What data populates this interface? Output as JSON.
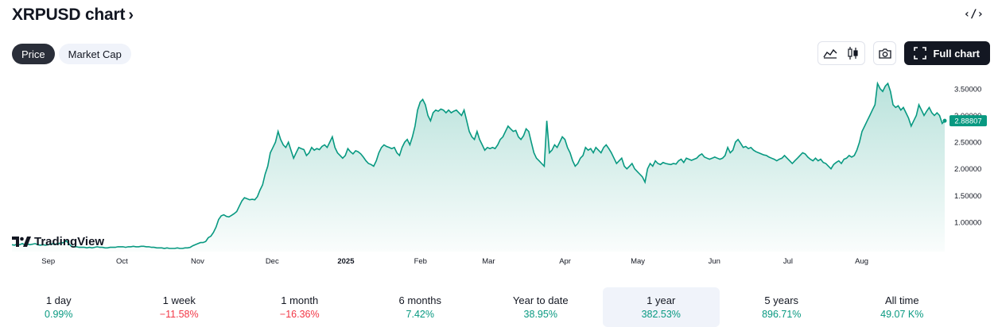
{
  "header": {
    "title": "XRPUSD chart",
    "chevron": "›",
    "embed_icon": "code-icon"
  },
  "toggles": [
    {
      "label": "Price",
      "active": true
    },
    {
      "label": "Market Cap",
      "active": false
    }
  ],
  "toolbar": {
    "line_icon": "area-chart-icon",
    "candle_icon": "candlestick-icon",
    "snapshot_icon": "camera-icon",
    "full_chart_label": "Full chart",
    "full_chart_icon": "fullscreen-icon"
  },
  "logo": {
    "text": "TradingView"
  },
  "colors": {
    "line": "#089981",
    "accent": "#089981",
    "negative": "#f23645"
  },
  "chart_data": {
    "type": "area",
    "series": [
      {
        "values": [
          0.58,
          0.57,
          0.59,
          0.58,
          0.6,
          0.58,
          0.59,
          0.58,
          0.59,
          0.6,
          0.58,
          0.57,
          0.58,
          0.57,
          0.58,
          0.59,
          0.6,
          0.59,
          0.6,
          0.61,
          0.62,
          0.65,
          0.6,
          0.55,
          0.54,
          0.54,
          0.53,
          0.53,
          0.53,
          0.52,
          0.53,
          0.52,
          0.53,
          0.54,
          0.53,
          0.53,
          0.52,
          0.52,
          0.53,
          0.53,
          0.53,
          0.54,
          0.54,
          0.54,
          0.53,
          0.54,
          0.54,
          0.55,
          0.54,
          0.54,
          0.55,
          0.55,
          0.54,
          0.54,
          0.53,
          0.53,
          0.52,
          0.52,
          0.52,
          0.51,
          0.52,
          0.51,
          0.51,
          0.51,
          0.52,
          0.51,
          0.51,
          0.52,
          0.52,
          0.53,
          0.56,
          0.58,
          0.6,
          0.62,
          0.62,
          0.64,
          0.71,
          0.74,
          0.81,
          0.91,
          1.05,
          1.12,
          1.14,
          1.11,
          1.1,
          1.13,
          1.16,
          1.2,
          1.3,
          1.4,
          1.46,
          1.44,
          1.42,
          1.43,
          1.42,
          1.48,
          1.6,
          1.7,
          1.9,
          2.05,
          2.3,
          2.4,
          2.5,
          2.7,
          2.55,
          2.45,
          2.4,
          2.5,
          2.35,
          2.2,
          2.3,
          2.4,
          2.38,
          2.36,
          2.25,
          2.3,
          2.4,
          2.35,
          2.38,
          2.36,
          2.42,
          2.45,
          2.4,
          2.5,
          2.6,
          2.4,
          2.3,
          2.25,
          2.2,
          2.25,
          2.38,
          2.32,
          2.28,
          2.34,
          2.32,
          2.28,
          2.22,
          2.15,
          2.1,
          2.08,
          2.05,
          2.15,
          2.3,
          2.4,
          2.45,
          2.42,
          2.4,
          2.38,
          2.4,
          2.3,
          2.25,
          2.4,
          2.5,
          2.55,
          2.45,
          2.6,
          2.8,
          3.1,
          3.25,
          3.3,
          3.2,
          3.0,
          2.9,
          3.05,
          3.1,
          3.08,
          3.12,
          3.1,
          3.05,
          3.1,
          3.05,
          3.08,
          3.1,
          3.05,
          3.0,
          3.1,
          2.9,
          2.7,
          2.6,
          2.55,
          2.7,
          2.55,
          2.45,
          2.35,
          2.4,
          2.38,
          2.4,
          2.38,
          2.45,
          2.55,
          2.6,
          2.7,
          2.8,
          2.75,
          2.7,
          2.72,
          2.6,
          2.55,
          2.62,
          2.75,
          2.7,
          2.5,
          2.3,
          2.2,
          2.15,
          2.1,
          2.05,
          2.9,
          2.3,
          2.35,
          2.45,
          2.4,
          2.5,
          2.6,
          2.55,
          2.4,
          2.3,
          2.15,
          2.05,
          2.1,
          2.2,
          2.25,
          2.4,
          2.35,
          2.38,
          2.3,
          2.4,
          2.35,
          2.3,
          2.4,
          2.45,
          2.38,
          2.3,
          2.2,
          2.1,
          2.15,
          2.2,
          2.05,
          2.0,
          2.05,
          2.1,
          2.0,
          1.95,
          1.9,
          1.85,
          1.75,
          2.0,
          2.1,
          2.05,
          2.15,
          2.1,
          2.08,
          2.12,
          2.1,
          2.09,
          2.08,
          2.1,
          2.09,
          2.15,
          2.18,
          2.12,
          2.2,
          2.18,
          2.16,
          2.18,
          2.2,
          2.25,
          2.28,
          2.22,
          2.2,
          2.18,
          2.2,
          2.22,
          2.2,
          2.18,
          2.2,
          2.25,
          2.4,
          2.3,
          2.35,
          2.5,
          2.55,
          2.48,
          2.4,
          2.42,
          2.38,
          2.4,
          2.35,
          2.32,
          2.3,
          2.28,
          2.26,
          2.25,
          2.22,
          2.2,
          2.18,
          2.15,
          2.18,
          2.2,
          2.25,
          2.2,
          2.15,
          2.1,
          2.15,
          2.2,
          2.25,
          2.3,
          2.28,
          2.22,
          2.18,
          2.15,
          2.2,
          2.15,
          2.18,
          2.12,
          2.1,
          2.05,
          2.0,
          2.08,
          2.12,
          2.15,
          2.1,
          2.18,
          2.2,
          2.25,
          2.22,
          2.25,
          2.35,
          2.5,
          2.7,
          2.8,
          2.9,
          3.0,
          3.1,
          3.2,
          3.6,
          3.5,
          3.45,
          3.55,
          3.6,
          3.45,
          3.2,
          3.15,
          3.18,
          3.1,
          3.15,
          3.05,
          2.95,
          2.8,
          2.9,
          3.0,
          3.2,
          3.1,
          3.0,
          3.08,
          3.15,
          3.05,
          3.0,
          3.05,
          3.0,
          2.85,
          2.9
        ]
      }
    ],
    "last_value_label": "2.88807",
    "ylim": [
      0.45,
      3.75
    ],
    "y_ticks": [
      {
        "value": 3.5,
        "label": "3.50000"
      },
      {
        "value": 3.0,
        "label": "3.00000"
      },
      {
        "value": 2.5,
        "label": "2.50000"
      },
      {
        "value": 2.0,
        "label": "2.00000"
      },
      {
        "value": 1.5,
        "label": "1.50000"
      },
      {
        "value": 1.0,
        "label": "1.00000"
      }
    ],
    "x_ticks": [
      {
        "at": 0.039,
        "label": "Sep",
        "bold": false
      },
      {
        "at": 0.118,
        "label": "Oct",
        "bold": false
      },
      {
        "at": 0.199,
        "label": "Nov",
        "bold": false
      },
      {
        "at": 0.279,
        "label": "Dec",
        "bold": false
      },
      {
        "at": 0.358,
        "label": "2025",
        "bold": true
      },
      {
        "at": 0.438,
        "label": "Feb",
        "bold": false
      },
      {
        "at": 0.511,
        "label": "Mar",
        "bold": false
      },
      {
        "at": 0.593,
        "label": "Apr",
        "bold": false
      },
      {
        "at": 0.671,
        "label": "May",
        "bold": false
      },
      {
        "at": 0.753,
        "label": "Jun",
        "bold": false
      },
      {
        "at": 0.832,
        "label": "Jul",
        "bold": false
      },
      {
        "at": 0.911,
        "label": "Aug",
        "bold": false
      }
    ]
  },
  "periods": [
    {
      "label": "1 day",
      "value": "0.99%",
      "positive": true,
      "selected": false
    },
    {
      "label": "1 week",
      "value": "−11.58%",
      "positive": false,
      "selected": false
    },
    {
      "label": "1 month",
      "value": "−16.36%",
      "positive": false,
      "selected": false
    },
    {
      "label": "6 months",
      "value": "7.42%",
      "positive": true,
      "selected": false
    },
    {
      "label": "Year to date",
      "value": "38.95%",
      "positive": true,
      "selected": false
    },
    {
      "label": "1 year",
      "value": "382.53%",
      "positive": true,
      "selected": true
    },
    {
      "label": "5 years",
      "value": "896.71%",
      "positive": true,
      "selected": false
    },
    {
      "label": "All time",
      "value": "49.07 K%",
      "positive": true,
      "selected": false
    }
  ]
}
